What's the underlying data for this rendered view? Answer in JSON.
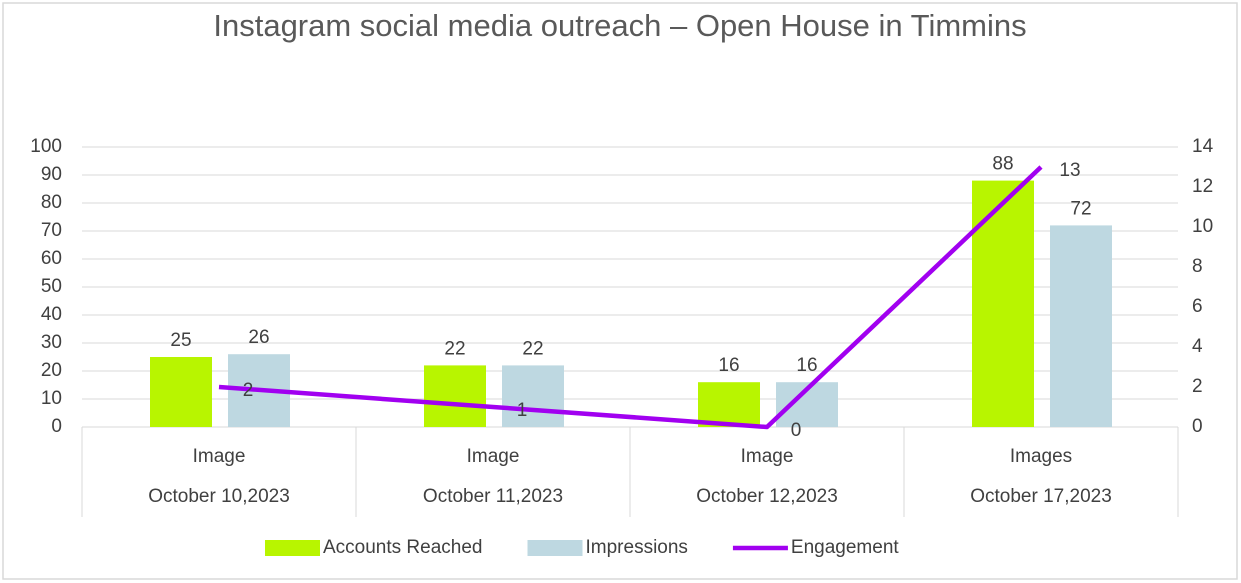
{
  "chart_data": {
    "type": "bar",
    "title": "Instagram social media outreach – Open House in Timmins",
    "categories": [
      "Image",
      "Image",
      "Image",
      "Images"
    ],
    "category_groups": [
      "October 10,2023",
      "October 11,2023",
      "October 12,2023",
      "October 17,2023"
    ],
    "series": [
      {
        "name": "Accounts Reached",
        "type": "bar",
        "color": "#b8f500",
        "values": [
          25,
          22,
          16,
          88
        ]
      },
      {
        "name": "Impressions",
        "type": "bar",
        "color": "#bed8e1",
        "values": [
          26,
          22,
          16,
          72
        ]
      },
      {
        "name": "Engagement",
        "type": "line",
        "axis": "y2",
        "color": "#a100f0",
        "values": [
          2,
          1,
          0,
          13
        ]
      }
    ],
    "ylim": [
      0,
      100
    ],
    "yticks": [
      0,
      10,
      20,
      30,
      40,
      50,
      60,
      70,
      80,
      90,
      100
    ],
    "y2lim": [
      0,
      14
    ],
    "y2ticks": [
      0,
      2,
      4,
      6,
      8,
      10,
      12,
      14
    ],
    "grid": true,
    "legend": "bottom"
  }
}
